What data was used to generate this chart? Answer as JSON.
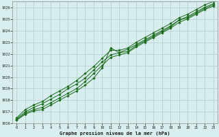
{
  "title": "Graphe pression niveau de la mer (hPa)",
  "bg_color": "#d8eeee",
  "grid_color": "#b0cccc",
  "line_color": "#1a6b1a",
  "marker_color": "#1a6b1a",
  "xlim": [
    -0.5,
    23.5
  ],
  "ylim": [
    1016,
    1026.5
  ],
  "xticks": [
    0,
    1,
    2,
    3,
    4,
    5,
    6,
    7,
    8,
    9,
    10,
    11,
    12,
    13,
    14,
    15,
    16,
    17,
    18,
    19,
    20,
    21,
    22,
    23
  ],
  "yticks": [
    1016,
    1017,
    1018,
    1019,
    1020,
    1021,
    1022,
    1023,
    1024,
    1025,
    1026
  ],
  "series": [
    [
      1016.3,
      1016.8,
      1017.1,
      1017.2,
      1017.6,
      1018.0,
      1018.4,
      1018.8,
      1019.3,
      1019.9,
      1020.8,
      1022.5,
      1022.1,
      1022.2,
      1022.7,
      1023.1,
      1023.5,
      1023.9,
      1024.3,
      1024.9,
      1025.1,
      1025.5,
      1025.9,
      1026.2
    ],
    [
      1016.3,
      1016.9,
      1017.2,
      1017.4,
      1017.8,
      1018.2,
      1018.6,
      1019.0,
      1019.6,
      1020.3,
      1021.0,
      1021.7,
      1021.9,
      1022.1,
      1022.6,
      1023.0,
      1023.4,
      1023.8,
      1024.2,
      1024.7,
      1025.0,
      1025.4,
      1025.8,
      1026.1
    ],
    [
      1016.4,
      1017.0,
      1017.4,
      1017.7,
      1018.1,
      1018.5,
      1019.0,
      1019.4,
      1019.9,
      1020.6,
      1021.3,
      1021.9,
      1022.1,
      1022.4,
      1022.8,
      1023.2,
      1023.6,
      1024.0,
      1024.4,
      1024.9,
      1025.2,
      1025.6,
      1026.0,
      1026.3
    ],
    [
      1016.5,
      1017.2,
      1017.6,
      1017.9,
      1018.4,
      1018.8,
      1019.2,
      1019.7,
      1020.3,
      1020.9,
      1021.6,
      1022.3,
      1022.3,
      1022.5,
      1023.0,
      1023.4,
      1023.8,
      1024.2,
      1024.6,
      1025.1,
      1025.4,
      1025.8,
      1026.2,
      1026.5
    ]
  ]
}
